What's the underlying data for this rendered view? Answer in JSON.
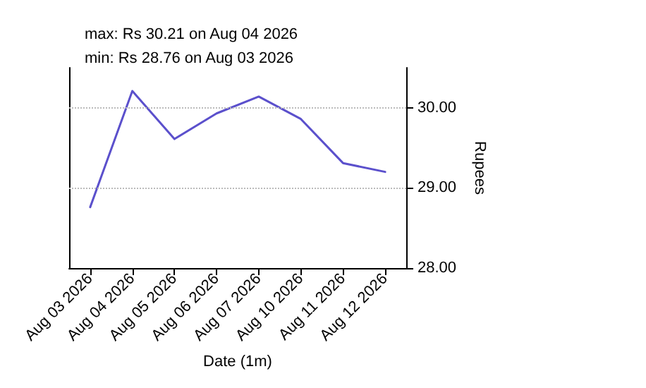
{
  "chart_data": {
    "type": "line",
    "title": "max: Rs 30.21 on Aug 04 2026",
    "subtitle": "min: Rs 28.76 on Aug 03 2026",
    "xlabel": "Date (1m)",
    "ylabel": "Rupees",
    "categories": [
      "Aug 03 2026",
      "Aug 04 2026",
      "Aug 05 2026",
      "Aug 06 2026",
      "Aug 07 2026",
      "Aug 10 2026",
      "Aug 11 2026",
      "Aug 12 2026"
    ],
    "series": [
      {
        "color": "#5b50cc",
        "values": [
          28.76,
          30.21,
          29.61,
          29.93,
          30.14,
          29.86,
          29.31,
          29.2
        ]
      }
    ],
    "ylim": [
      28,
      30.5
    ],
    "yticks": [
      {
        "value": 28,
        "label": "28.00"
      },
      {
        "value": 29,
        "label": "29.00"
      },
      {
        "value": 30,
        "label": "30.00"
      }
    ],
    "grid": "y",
    "marker": "none",
    "line_style": "solid"
  }
}
